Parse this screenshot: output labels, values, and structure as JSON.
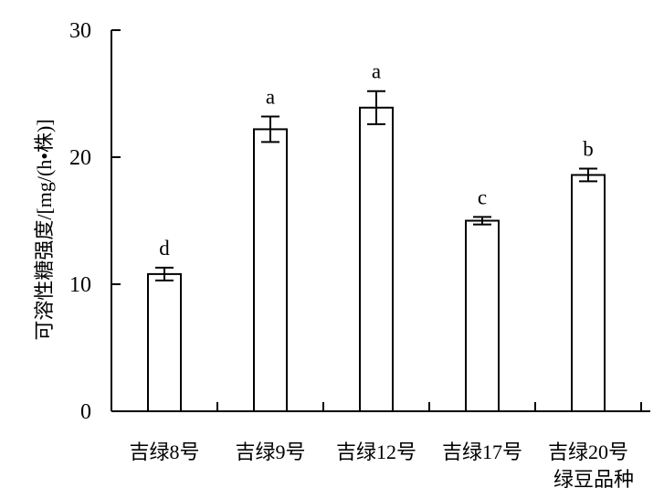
{
  "chart_data": {
    "type": "bar",
    "categories": [
      "吉绿8号",
      "吉绿9号",
      "吉绿12号",
      "吉绿17号",
      "吉绿20号"
    ],
    "values": [
      10.8,
      22.2,
      23.9,
      15.0,
      18.6
    ],
    "errors": [
      0.5,
      1.0,
      1.3,
      0.3,
      0.5
    ],
    "significance": [
      "d",
      "a",
      "a",
      "c",
      "b"
    ],
    "title": "",
    "xlabel": "绿豆品种",
    "ylabel": "可溶性糖强度/[mg/(h•株)]",
    "ylim": [
      0,
      30
    ],
    "yticks": [
      0,
      10,
      20,
      30
    ],
    "grid": false,
    "bar_fill": "#ffffff",
    "bar_stroke": "#000000"
  }
}
